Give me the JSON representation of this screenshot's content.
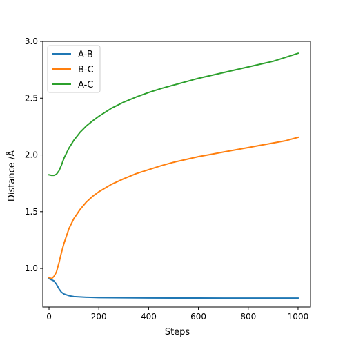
{
  "chart_data": {
    "type": "line",
    "title": "",
    "xlabel": "Steps",
    "ylabel": "Distance /Å",
    "xlim": [
      -25,
      1050
    ],
    "ylim": [
      0.66,
      3.0
    ],
    "xticks": [
      0,
      200,
      400,
      600,
      800,
      1000
    ],
    "xtick_labels": [
      "0",
      "200",
      "400",
      "600",
      "800",
      "1000"
    ],
    "yticks": [
      1.0,
      1.5,
      2.0,
      2.5,
      3.0
    ],
    "ytick_labels": [
      "1.0",
      "1.5",
      "2.0",
      "2.5",
      "3.0"
    ],
    "grid": false,
    "legend_position": "top-left",
    "series": [
      {
        "name": "A-B",
        "color": "#1f77b4",
        "x": [
          0,
          20,
          30,
          40,
          50,
          60,
          80,
          100,
          150,
          200,
          300,
          400,
          500,
          600,
          700,
          800,
          900,
          1000
        ],
        "y": [
          0.91,
          0.89,
          0.86,
          0.82,
          0.79,
          0.775,
          0.76,
          0.752,
          0.746,
          0.743,
          0.741,
          0.74,
          0.739,
          0.739,
          0.738,
          0.738,
          0.738,
          0.738
        ]
      },
      {
        "name": "B-C",
        "color": "#ff7f0e",
        "x": [
          0,
          10,
          20,
          30,
          40,
          50,
          60,
          80,
          100,
          125,
          150,
          175,
          200,
          250,
          300,
          350,
          400,
          450,
          500,
          550,
          600,
          650,
          700,
          750,
          800,
          850,
          900,
          950,
          1000
        ],
        "y": [
          0.92,
          0.91,
          0.93,
          0.97,
          1.05,
          1.14,
          1.22,
          1.35,
          1.44,
          1.52,
          1.585,
          1.635,
          1.675,
          1.74,
          1.79,
          1.835,
          1.87,
          1.905,
          1.935,
          1.96,
          1.985,
          2.005,
          2.025,
          2.045,
          2.065,
          2.085,
          2.105,
          2.125,
          2.155
        ]
      },
      {
        "name": "A-C",
        "color": "#2ca02c",
        "x": [
          0,
          10,
          20,
          30,
          40,
          50,
          60,
          80,
          100,
          125,
          150,
          175,
          200,
          250,
          300,
          350,
          400,
          450,
          500,
          550,
          600,
          650,
          700,
          750,
          800,
          850,
          900,
          950,
          1000
        ],
        "y": [
          1.825,
          1.82,
          1.82,
          1.83,
          1.86,
          1.91,
          1.97,
          2.06,
          2.13,
          2.2,
          2.255,
          2.3,
          2.34,
          2.41,
          2.465,
          2.51,
          2.55,
          2.585,
          2.615,
          2.645,
          2.675,
          2.7,
          2.725,
          2.75,
          2.775,
          2.8,
          2.825,
          2.86,
          2.895
        ]
      }
    ]
  }
}
